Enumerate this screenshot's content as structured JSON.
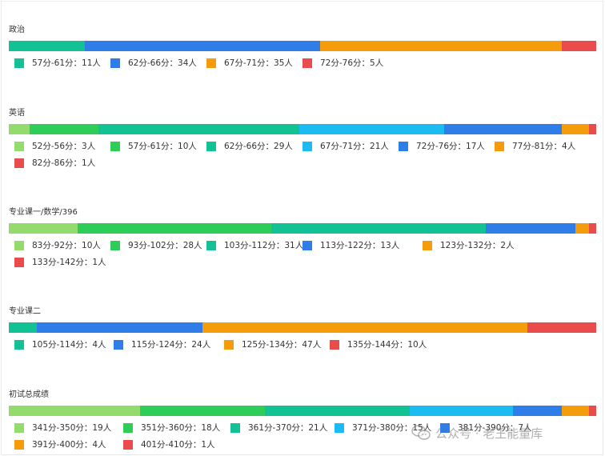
{
  "colors": {
    "light_green": "#92db6c",
    "green": "#2ecc58",
    "teal": "#12c294",
    "sky": "#1cbcf2",
    "blue": "#2f7de8",
    "orange": "#f49c0c",
    "red": "#ea4b4b"
  },
  "watermark": {
    "text": "公众号 · 老王能量库",
    "icon": "wechat-icon"
  },
  "chart_data": [
    {
      "type": "bar",
      "title": "政治",
      "categories": [
        "57分-61分",
        "62分-66分",
        "67分-71分",
        "72分-76分"
      ],
      "values": [
        11,
        34,
        35,
        5
      ],
      "colors": [
        "#12c294",
        "#2f7de8",
        "#f49c0c",
        "#ea4b4b"
      ],
      "legend": [
        "57分-61分：11人",
        "62分-66分：34人",
        "67分-71分：35人",
        "72分-76分：5人"
      ]
    },
    {
      "type": "bar",
      "title": "英语",
      "categories": [
        "52分-56分",
        "57分-61分",
        "62分-66分",
        "67分-71分",
        "72分-76分",
        "77分-81分",
        "82分-86分"
      ],
      "values": [
        3,
        10,
        29,
        21,
        17,
        4,
        1
      ],
      "colors": [
        "#92db6c",
        "#2ecc58",
        "#12c294",
        "#1cbcf2",
        "#2f7de8",
        "#f49c0c",
        "#ea4b4b"
      ],
      "legend": [
        "52分-56分：3人",
        "57分-61分：10人",
        "62分-66分：29人",
        "67分-71分：21人",
        "72分-76分：17人",
        "77分-81分：4人",
        "82分-86分：1人"
      ]
    },
    {
      "type": "bar",
      "title": "专业课一/数学/396",
      "categories": [
        "83分-92分",
        "93分-102分",
        "103分-112分",
        "113分-122分",
        "123分-132分",
        "133分-142分"
      ],
      "values": [
        10,
        28,
        31,
        13,
        2,
        1
      ],
      "colors": [
        "#92db6c",
        "#2ecc58",
        "#12c294",
        "#2f7de8",
        "#f49c0c",
        "#ea4b4b"
      ],
      "legend": [
        "83分-92分：10人",
        "93分-102分：28人",
        "103分-112分：31人",
        "113分-122分：13人",
        "123分-132分：2人",
        "133分-142分：1人"
      ]
    },
    {
      "type": "bar",
      "title": "专业课二",
      "categories": [
        "105分-114分",
        "115分-124分",
        "125分-134分",
        "135分-144分"
      ],
      "values": [
        4,
        24,
        47,
        10
      ],
      "colors": [
        "#12c294",
        "#2f7de8",
        "#f49c0c",
        "#ea4b4b"
      ],
      "legend": [
        "105分-114分：4人",
        "115分-124分：24人",
        "125分-134分：47人",
        "135分-144分：10人"
      ]
    },
    {
      "type": "bar",
      "title": "初试总成绩",
      "categories": [
        "341分-350分",
        "351分-360分",
        "361分-370分",
        "371分-380分",
        "381分-390分",
        "391分-400分",
        "401分-410分"
      ],
      "values": [
        19,
        18,
        21,
        15,
        7,
        4,
        1
      ],
      "colors": [
        "#92db6c",
        "#2ecc58",
        "#12c294",
        "#1cbcf2",
        "#2f7de8",
        "#f49c0c",
        "#ea4b4b"
      ],
      "legend": [
        "341分-350分：19人",
        "351分-360分：18人",
        "361分-370分：21人",
        "371分-380分：15人",
        "381分-390分：7人",
        "391分-400分：4人",
        "401分-410分：1人"
      ]
    }
  ]
}
